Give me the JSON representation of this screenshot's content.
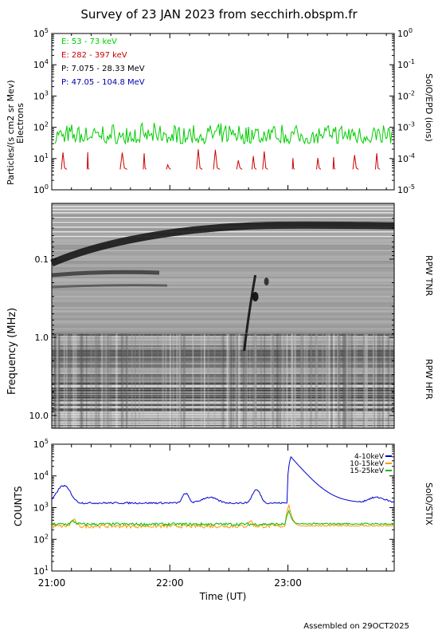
{
  "title": "Survey of 23 JAN 2023 from secchirh.obspm.fr",
  "footer": "Assembled on 29OCT2025",
  "time_axis": {
    "label": "Time (UT)",
    "ticks": [
      "21:00",
      "22:00",
      "23:00"
    ]
  },
  "chart_data": [
    {
      "type": "line",
      "id": "epd-particles",
      "ylabel": "Particles/(s cm2 sr Mev)",
      "ylabel2": "Electrons",
      "right_label": "SolO/EPD (ions)",
      "yscale": "log",
      "ylim": [
        1,
        100000
      ],
      "y_ticks": [
        "10^0",
        "10^1",
        "10^2",
        "10^3",
        "10^4",
        "10^5"
      ],
      "y2_ticks": [
        "10^-5",
        "10^-4",
        "10^-3",
        "10^-2",
        "10^-1",
        "10^0"
      ],
      "xlim": [
        "21:00",
        "23:54"
      ],
      "legend_placement": "top-left",
      "series": [
        {
          "name": "E: 53 - 73 keV",
          "color": "#00cc00",
          "typical_range": [
            25,
            130
          ]
        },
        {
          "name": "E: 282 - 397 keV",
          "color": "#cc0000",
          "typical_range": [
            4,
            20
          ]
        },
        {
          "name": "P: 7.075 - 28.33 MeV",
          "color": "#000000"
        },
        {
          "name": "P: 47.05 - 104.8 MeV",
          "color": "#0000aa"
        }
      ]
    },
    {
      "type": "heatmap",
      "id": "rpw-spectrogram",
      "ylabel": "Frequency (MHz)",
      "yscale": "log",
      "y_ticks": [
        "0.1",
        "1.0",
        "10.0"
      ],
      "right_labels": [
        "RPW TNR",
        "RPW HFR"
      ],
      "xlim": [
        "21:00",
        "23:54"
      ],
      "colormap": "grayscale"
    },
    {
      "type": "line",
      "id": "stix-counts",
      "ylabel": "COUNTS",
      "right_label": "SolO/STIX",
      "yscale": "log",
      "ylim": [
        10,
        100000
      ],
      "y_ticks": [
        "10^1",
        "10^2",
        "10^3",
        "10^4",
        "10^5"
      ],
      "xlim": [
        "21:00",
        "23:54"
      ],
      "legend_placement": "top-right",
      "series": [
        {
          "name": "4-10keV",
          "color": "#0000cc",
          "baseline": 1400,
          "peak": {
            "time": "23:00",
            "value": 40000
          }
        },
        {
          "name": "10-15keV",
          "color": "#ff9900",
          "baseline": 260,
          "peak": {
            "time": "22:59",
            "value": 1200
          }
        },
        {
          "name": "15-25keV",
          "color": "#00bb00",
          "baseline": 300,
          "peak": {
            "time": "22:59",
            "value": 800
          }
        }
      ]
    }
  ]
}
